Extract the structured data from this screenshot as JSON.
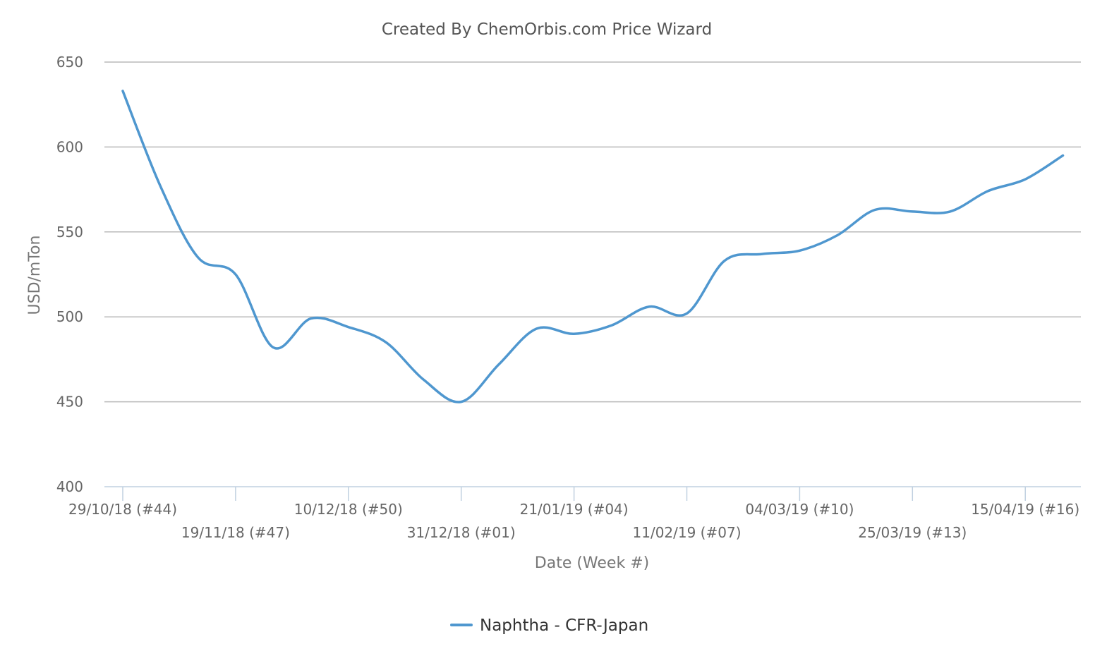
{
  "chart_data": {
    "type": "line",
    "title": "Created By ChemOrbis.com Price Wizard",
    "xlabel": "Date (Week #)",
    "ylabel": "USD/mTon",
    "ylim": [
      400,
      650
    ],
    "yticks": [
      400,
      450,
      500,
      550,
      600,
      650
    ],
    "grid": true,
    "legend_position": "bottom-center",
    "x_tick_labels": [
      "29/10/18 (#44)",
      "19/11/18 (#47)",
      "10/12/18 (#50)",
      "31/12/18 (#01)",
      "21/01/19 (#04)",
      "11/02/19 (#07)",
      "04/03/19 (#10)",
      "25/03/19 (#13)",
      "15/04/19 (#16)"
    ],
    "x": [
      "29/10/18 (#44)",
      "05/11/18 (#45)",
      "12/11/18 (#46)",
      "19/11/18 (#47)",
      "26/11/18 (#48)",
      "03/12/18 (#49)",
      "10/12/18 (#50)",
      "17/12/18 (#51)",
      "24/12/18 (#52)",
      "31/12/18 (#01)",
      "07/01/19 (#02)",
      "14/01/19 (#03)",
      "21/01/19 (#04)",
      "28/01/19 (#05)",
      "04/02/19 (#06)",
      "11/02/19 (#07)",
      "18/02/19 (#08)",
      "25/02/19 (#09)",
      "04/03/19 (#10)",
      "11/03/19 (#11)",
      "18/03/19 (#12)",
      "25/03/19 (#13)",
      "01/04/19 (#14)",
      "08/04/19 (#15)",
      "15/04/19 (#16)",
      "22/04/19 (#17)"
    ],
    "series": [
      {
        "name": "Naphtha - CFR-Japan",
        "color": "#4f97cf",
        "values": [
          633,
          577,
          535,
          525,
          482,
          499,
          494,
          485,
          463,
          450,
          472,
          493,
          490,
          495,
          506,
          502,
          533,
          537,
          539,
          548,
          563,
          562,
          562,
          574,
          581,
          595
        ]
      }
    ]
  }
}
